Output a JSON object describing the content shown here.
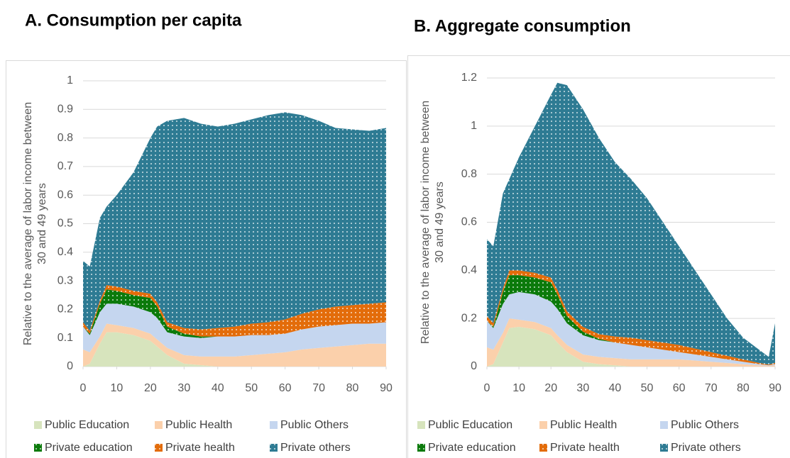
{
  "chart_data": [
    {
      "type": "stacked_area",
      "title": "A. Consumption per capita",
      "y_label": [
        "Relative to the average of labor income between",
        "30 and 49 years"
      ],
      "x": [
        0,
        2,
        5,
        7,
        10,
        15,
        20,
        22,
        25,
        30,
        35,
        40,
        45,
        50,
        55,
        60,
        65,
        70,
        75,
        80,
        85,
        90
      ],
      "xlim": [
        0,
        90
      ],
      "xticks": [
        0,
        10,
        20,
        30,
        40,
        50,
        60,
        70,
        80,
        90
      ],
      "ylim": [
        0,
        1
      ],
      "yticks": [
        0,
        0.1,
        0.2,
        0.3,
        0.4,
        0.5,
        0.6,
        0.7,
        0.8,
        0.9,
        1
      ],
      "grid": true,
      "series": [
        {
          "name": "Public Education",
          "color": "#d7e4bd",
          "pattern": false,
          "values": [
            0,
            0.01,
            0.08,
            0.12,
            0.12,
            0.11,
            0.09,
            0.07,
            0.04,
            0.01,
            0.005,
            0,
            0,
            0,
            0,
            0,
            0,
            0,
            0,
            0,
            0,
            0
          ]
        },
        {
          "name": "Public Health",
          "color": "#fbd0ab",
          "pattern": false,
          "values": [
            0.06,
            0.04,
            0.025,
            0.03,
            0.025,
            0.025,
            0.025,
            0.025,
            0.025,
            0.03,
            0.03,
            0.035,
            0.035,
            0.04,
            0.045,
            0.05,
            0.06,
            0.065,
            0.07,
            0.075,
            0.08,
            0.08
          ]
        },
        {
          "name": "Public Others",
          "color": "#c5d6ef",
          "pattern": false,
          "values": [
            0.08,
            0.06,
            0.085,
            0.07,
            0.075,
            0.075,
            0.075,
            0.075,
            0.055,
            0.065,
            0.065,
            0.07,
            0.07,
            0.07,
            0.065,
            0.065,
            0.07,
            0.075,
            0.075,
            0.075,
            0.07,
            0.075
          ]
        },
        {
          "name": "Private education",
          "color": "#0b7a0b",
          "pattern": true,
          "values": [
            0,
            0.005,
            0.03,
            0.05,
            0.045,
            0.04,
            0.05,
            0.04,
            0.02,
            0.01,
            0.005,
            0,
            0,
            0,
            0,
            0,
            0,
            0,
            0,
            0,
            0,
            0
          ]
        },
        {
          "name": "Private health",
          "color": "#e36c0a",
          "pattern": true,
          "values": [
            0.015,
            0.01,
            0.01,
            0.015,
            0.015,
            0.015,
            0.015,
            0.015,
            0.015,
            0.02,
            0.025,
            0.03,
            0.035,
            0.04,
            0.045,
            0.05,
            0.055,
            0.06,
            0.065,
            0.065,
            0.07,
            0.07
          ]
        },
        {
          "name": "Private others",
          "color": "#2e7b93",
          "pattern": true,
          "values": [
            0.215,
            0.225,
            0.29,
            0.275,
            0.32,
            0.415,
            0.545,
            0.615,
            0.705,
            0.735,
            0.72,
            0.705,
            0.71,
            0.715,
            0.725,
            0.725,
            0.695,
            0.66,
            0.625,
            0.615,
            0.605,
            0.61
          ]
        }
      ]
    },
    {
      "type": "stacked_area",
      "title": "B. Aggregate consumption",
      "y_label": [
        "Relative to the average of labor income between",
        "30 and 49 years"
      ],
      "x": [
        0,
        2,
        5,
        7,
        10,
        15,
        20,
        22,
        25,
        30,
        35,
        40,
        45,
        50,
        55,
        60,
        65,
        70,
        75,
        80,
        85,
        88,
        90
      ],
      "xlim": [
        0,
        90
      ],
      "xticks": [
        0,
        10,
        20,
        30,
        40,
        50,
        60,
        70,
        80,
        90
      ],
      "ylim": [
        0,
        1.2
      ],
      "yticks": [
        0,
        0.2,
        0.4,
        0.6,
        0.8,
        1,
        1.2
      ],
      "grid": true,
      "series": [
        {
          "name": "Public Education",
          "color": "#d7e4bd",
          "pattern": false,
          "values": [
            0,
            0.01,
            0.1,
            0.16,
            0.165,
            0.155,
            0.13,
            0.1,
            0.06,
            0.02,
            0.01,
            0.005,
            0,
            0,
            0,
            0,
            0,
            0,
            0,
            0,
            0,
            0,
            0
          ]
        },
        {
          "name": "Public Health",
          "color": "#fbd0ab",
          "pattern": false,
          "values": [
            0.08,
            0.06,
            0.04,
            0.04,
            0.03,
            0.03,
            0.03,
            0.03,
            0.03,
            0.03,
            0.03,
            0.03,
            0.03,
            0.03,
            0.03,
            0.03,
            0.025,
            0.02,
            0.015,
            0.01,
            0.005,
            0.003,
            0.005
          ]
        },
        {
          "name": "Public Others",
          "color": "#c5d6ef",
          "pattern": false,
          "values": [
            0.11,
            0.09,
            0.12,
            0.1,
            0.115,
            0.115,
            0.11,
            0.11,
            0.09,
            0.08,
            0.07,
            0.065,
            0.06,
            0.05,
            0.04,
            0.03,
            0.025,
            0.02,
            0.015,
            0.01,
            0.005,
            0.002,
            0.005
          ]
        },
        {
          "name": "Private education",
          "color": "#0b7a0b",
          "pattern": true,
          "values": [
            0,
            0.005,
            0.05,
            0.08,
            0.07,
            0.07,
            0.08,
            0.06,
            0.03,
            0.015,
            0.005,
            0,
            0,
            0,
            0,
            0,
            0,
            0,
            0,
            0,
            0,
            0,
            0
          ]
        },
        {
          "name": "Private health",
          "color": "#e36c0a",
          "pattern": true,
          "values": [
            0.02,
            0.015,
            0.015,
            0.02,
            0.02,
            0.02,
            0.02,
            0.02,
            0.02,
            0.02,
            0.02,
            0.025,
            0.03,
            0.03,
            0.03,
            0.03,
            0.025,
            0.02,
            0.015,
            0.01,
            0.005,
            0.003,
            0.005
          ]
        },
        {
          "name": "Private others",
          "color": "#2e7b93",
          "pattern": true,
          "values": [
            0.32,
            0.32,
            0.395,
            0.38,
            0.47,
            0.61,
            0.76,
            0.86,
            0.94,
            0.905,
            0.815,
            0.725,
            0.66,
            0.59,
            0.5,
            0.41,
            0.325,
            0.24,
            0.155,
            0.09,
            0.055,
            0.032,
            0.165
          ]
        }
      ]
    }
  ]
}
